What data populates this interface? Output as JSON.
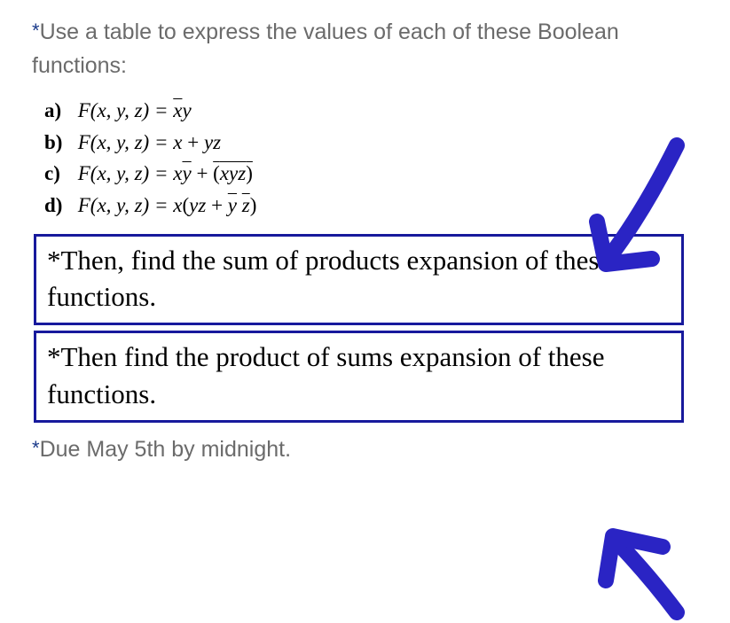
{
  "intro": {
    "asterisk": "*",
    "text": "Use a table to express the values of each of these Boolean functions:"
  },
  "items": {
    "a": {
      "label": "a)",
      "lhs": "F(x, y, z) = ",
      "rhs_html": "<span class='ov fxyz'>x</span><span class='fxyz'>y</span>"
    },
    "b": {
      "label": "b)",
      "lhs": "F(x, y, z) = ",
      "rhs_html": "<span class='fxyz'>x</span> + <span class='fxyz'>yz</span>"
    },
    "c": {
      "label": "c)",
      "lhs": "F(x, y, z) = ",
      "rhs_html": "<span class='fxyz'>x</span><span class='ov fxyz'>y</span> + <span class='ov'>(<span class='fxyz'>xyz</span>)</span>"
    },
    "d": {
      "label": "d)",
      "lhs": "F(x, y, z) = ",
      "rhs_html": "<span class='fxyz'>x</span>(<span class='fxyz'>yz</span> + <span class='ov fxyz'>y</span> <span class='ov fxyz'>z</span>)"
    }
  },
  "box1": {
    "text": "*Then, find the sum of products expansion of these functions."
  },
  "box2": {
    "text": "*Then find the product of sums expansion of these functions."
  },
  "due": {
    "asterisk": "*",
    "text": "Due May 5th by midnight."
  },
  "colors": {
    "border": "#17199c",
    "arrow": "#2a24c4",
    "body_text": "#6b6b6b",
    "accent": "#1a3a8a"
  }
}
